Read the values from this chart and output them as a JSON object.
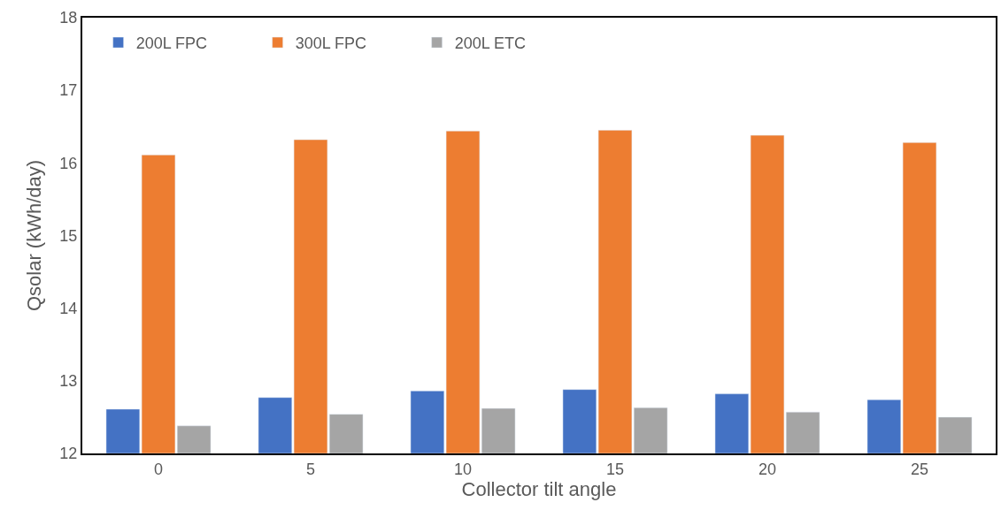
{
  "chart_data": {
    "type": "bar",
    "xlabel": "Collector tilt angle",
    "ylabel": "Qsolar (kWh/day)",
    "categories": [
      "0",
      "5",
      "10",
      "15",
      "20",
      "25"
    ],
    "series": [
      {
        "name": "200L FPC",
        "color": "#4472c4",
        "values": [
          12.61,
          12.77,
          12.86,
          12.88,
          12.82,
          12.74
        ]
      },
      {
        "name": "300L FPC",
        "color": "#ed7d31",
        "values": [
          16.11,
          16.32,
          16.44,
          16.45,
          16.38,
          16.28
        ]
      },
      {
        "name": "200L ETC",
        "color": "#a5a5a5",
        "values": [
          12.38,
          12.54,
          12.62,
          12.63,
          12.57,
          12.5
        ]
      }
    ],
    "ylim": [
      12,
      18
    ],
    "yticks": [
      12,
      13,
      14,
      15,
      16,
      17,
      18
    ],
    "legend": "top left"
  }
}
